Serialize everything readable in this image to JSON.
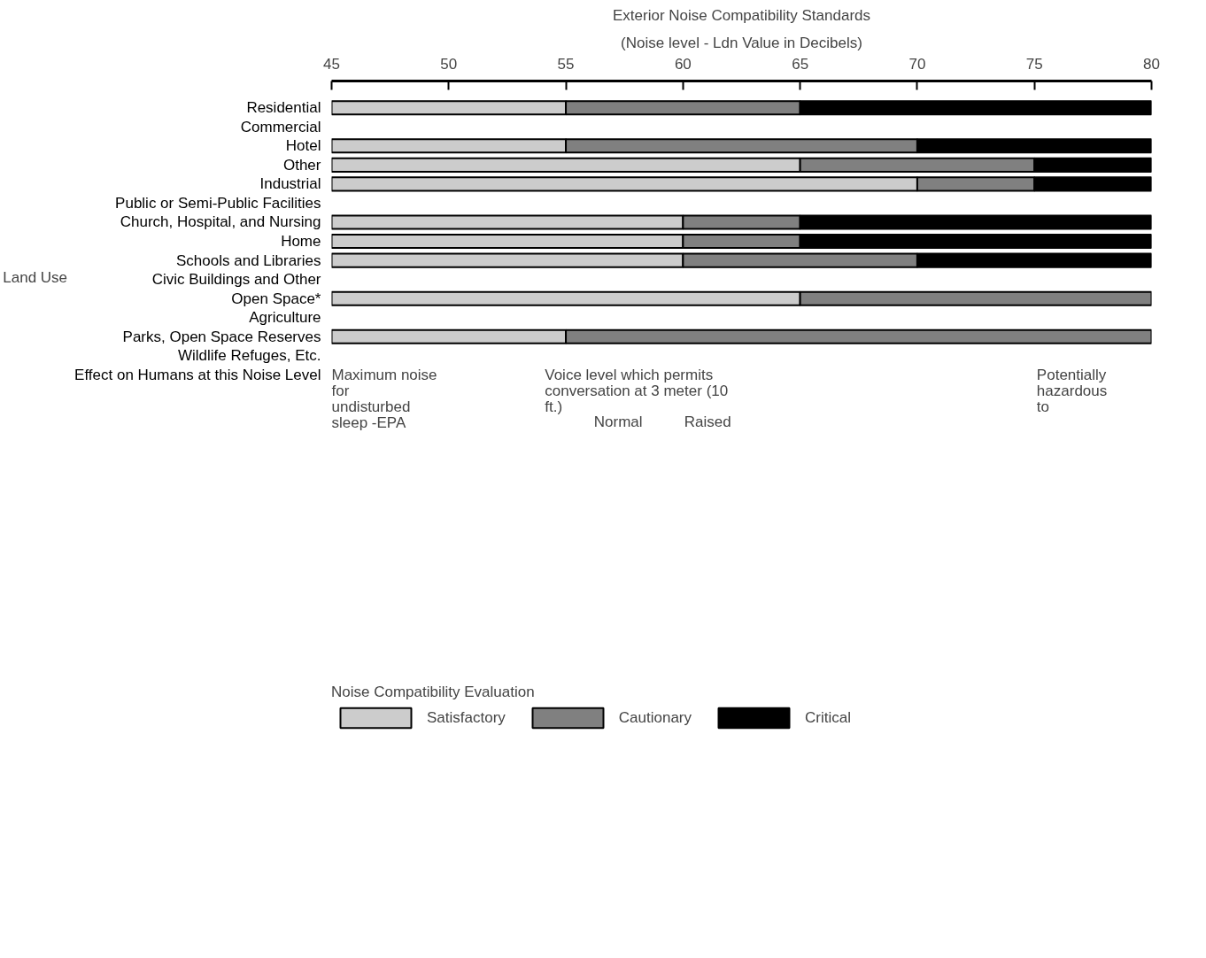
{
  "chart_data": {
    "type": "bar",
    "orientation": "horizontal",
    "title": "Exterior Noise Compatibility Standards",
    "subtitle": "(Noise level - Ldn Value in Decibels)",
    "ylabel": "Land Use",
    "categories": [
      "Residential",
      "Commercial",
      "Hotel",
      "Other",
      "Industrial",
      "Public or Semi-Public Facilities",
      "Church, Hospital, and Nursing",
      "Home",
      "Schools and Libraries",
      "Civic Buildings and Other",
      "Open Space*",
      "Agriculture",
      "Parks, Open Space Reserves",
      "Wildlife Refuges, Etc.",
      "Effect on Humans at this Noise Level"
    ],
    "series": [
      {
        "name": "Satisfactory",
        "color": "#cccccc",
        "base": [
          45,
          null,
          45,
          45,
          45,
          null,
          45,
          45,
          45,
          null,
          45,
          null,
          45,
          null,
          null
        ],
        "values": [
          10,
          null,
          10,
          20,
          25,
          null,
          15,
          15,
          15,
          null,
          20,
          null,
          10,
          null,
          null
        ]
      },
      {
        "name": "Cautionary",
        "color": "#808080",
        "base": [
          55,
          null,
          55,
          65,
          70,
          null,
          60,
          60,
          60,
          null,
          65,
          null,
          55,
          null,
          null
        ],
        "values": [
          10,
          null,
          15,
          10,
          5,
          null,
          5,
          5,
          10,
          null,
          15,
          null,
          25,
          null,
          null
        ]
      },
      {
        "name": "Critical",
        "color": "#000000",
        "base": [
          65,
          null,
          70,
          75,
          75,
          null,
          65,
          65,
          70,
          null,
          null,
          null,
          null,
          null,
          null
        ],
        "values": [
          15,
          null,
          10,
          5,
          5,
          null,
          15,
          15,
          10,
          null,
          null,
          null,
          null,
          null,
          null
        ]
      }
    ],
    "xlim": [
      45,
      80
    ],
    "xticks": [
      45,
      50,
      55,
      60,
      65,
      70,
      75,
      80
    ],
    "legend": "bottom left",
    "legend_title": "Noise Compatibility Evaluation",
    "annotations": [
      "Maximum noise for undisturbed sleep -EPA",
      "Voice level which permits conversation at 3 meter (10 ft.)",
      "Potentially hazardous to",
      "Normal",
      "Raised"
    ]
  }
}
